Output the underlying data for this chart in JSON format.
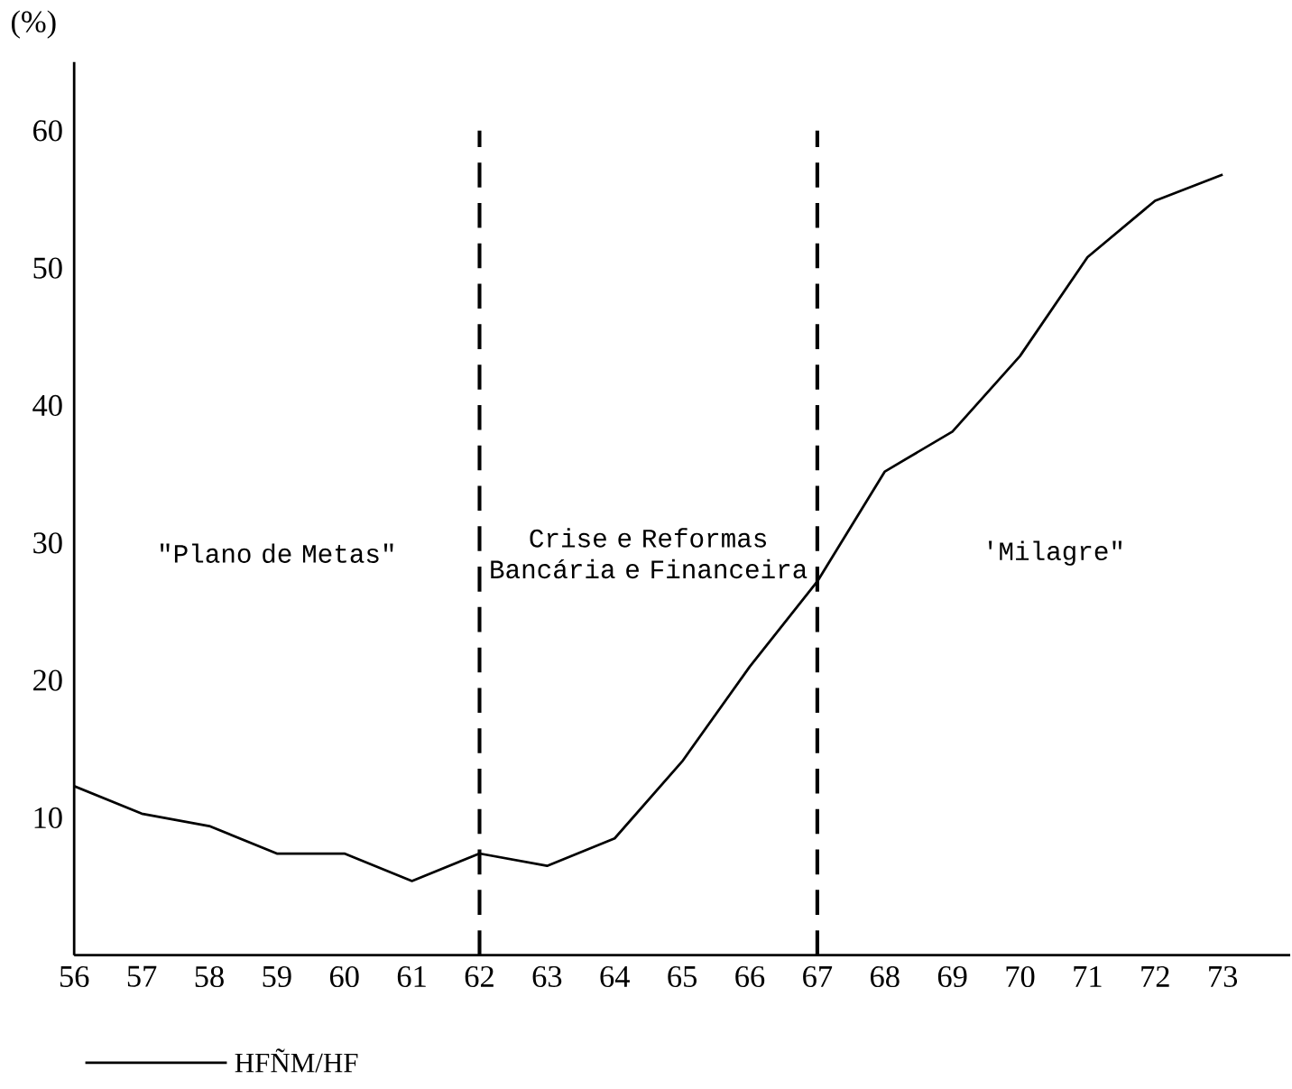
{
  "chart_data": {
    "type": "line",
    "ylabel": "(%)",
    "x": [
      56,
      57,
      58,
      59,
      60,
      61,
      62,
      63,
      64,
      65,
      66,
      67,
      68,
      69,
      70,
      71,
      72,
      73
    ],
    "series": [
      {
        "name": "HFÑM/HF",
        "color": "#000000",
        "values": [
          12.3,
          10.3,
          9.4,
          7.4,
          7.4,
          5.4,
          7.4,
          6.5,
          8.5,
          14.1,
          21.0,
          27.2,
          35.2,
          38.1,
          43.6,
          50.8,
          54.9,
          56.8
        ]
      }
    ],
    "xlim": [
      56,
      74
    ],
    "ylim": [
      0,
      65
    ],
    "xticks": [
      56,
      57,
      58,
      59,
      60,
      61,
      62,
      63,
      64,
      65,
      66,
      67,
      68,
      69,
      70,
      71,
      72,
      73
    ],
    "yticks": [
      10,
      20,
      30,
      40,
      50,
      60
    ],
    "ref_lines": [
      {
        "axis": "x",
        "value": 62,
        "line_style": "dashed"
      },
      {
        "axis": "x",
        "value": 67,
        "line_style": "dashed"
      }
    ],
    "annotations": [
      "\"Plano de Metas\"",
      "Crise e Reformas Bancária e Financeira",
      "'Milagre\""
    ],
    "legend": "bottom",
    "grid": false,
    "marker": "none",
    "line_style": "solid"
  }
}
